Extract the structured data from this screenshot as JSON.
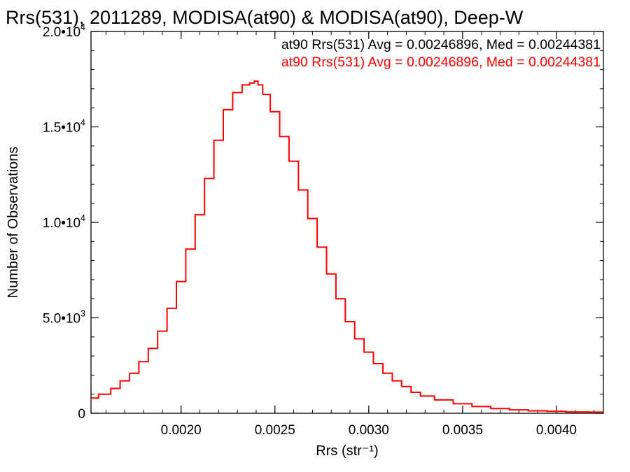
{
  "chart_data": {
    "type": "line",
    "title": "Rrs(531), 2011289, MODISA(at90) & MODISA(at90), Deep-W",
    "xlabel": "Rrs (str⁻¹)",
    "ylabel": "Number of Observations",
    "xlim": [
      0.00152,
      0.00425
    ],
    "ylim": [
      0,
      20000
    ],
    "x_ticks": [
      {
        "value": 0.002,
        "label": "0.0020"
      },
      {
        "value": 0.0025,
        "label": "0.0025"
      },
      {
        "value": 0.003,
        "label": "0.0030"
      },
      {
        "value": 0.0035,
        "label": "0.0035"
      },
      {
        "value": 0.004,
        "label": "0.0040"
      }
    ],
    "y_ticks": [
      {
        "value": 0,
        "mantissa": "0",
        "exp": ""
      },
      {
        "value": 5000,
        "mantissa": "5.0•10",
        "exp": "3"
      },
      {
        "value": 10000,
        "mantissa": "1.0•10",
        "exp": "4"
      },
      {
        "value": 15000,
        "mantissa": "1.5•10",
        "exp": "4"
      },
      {
        "value": 20000,
        "mantissa": "2.0•10",
        "exp": "4"
      }
    ],
    "x_minor_step": 0.0001,
    "y_minor_step": 1000,
    "grid": false,
    "legend_position": "top-right",
    "annotations": [
      {
        "text": "at90 Rrs(531) Avg = 0.00246896, Med = 0.00244381",
        "color": "#000000"
      },
      {
        "text": "at90 Rrs(531) Avg = 0.00246896, Med = 0.00244381",
        "color": "#ff0000"
      }
    ],
    "series": [
      {
        "color": "#ff0000",
        "style": "step",
        "x": [
          0.00152,
          0.0016,
          0.00165,
          0.0017,
          0.00175,
          0.0018,
          0.00185,
          0.0019,
          0.00195,
          0.002,
          0.00205,
          0.0021,
          0.00215,
          0.0022,
          0.00225,
          0.0023,
          0.00235,
          0.00238,
          0.0024,
          0.00242,
          0.00245,
          0.0025,
          0.00255,
          0.0026,
          0.00265,
          0.0027,
          0.00275,
          0.0028,
          0.00285,
          0.0029,
          0.00295,
          0.003,
          0.00305,
          0.0031,
          0.00315,
          0.0032,
          0.00325,
          0.0033,
          0.0034,
          0.0035,
          0.0036,
          0.0037,
          0.0038,
          0.0039,
          0.004,
          0.0041,
          0.00425
        ],
        "values": [
          800,
          1000,
          1300,
          1700,
          2100,
          2700,
          3400,
          4300,
          5500,
          6900,
          8600,
          10400,
          12300,
          14300,
          15900,
          16800,
          17200,
          17300,
          17400,
          17200,
          16700,
          15800,
          14500,
          13200,
          11700,
          10200,
          8700,
          7300,
          6000,
          4800,
          3900,
          3200,
          2600,
          2100,
          1700,
          1400,
          1100,
          900,
          700,
          500,
          350,
          250,
          180,
          130,
          100,
          70,
          60
        ]
      }
    ]
  }
}
